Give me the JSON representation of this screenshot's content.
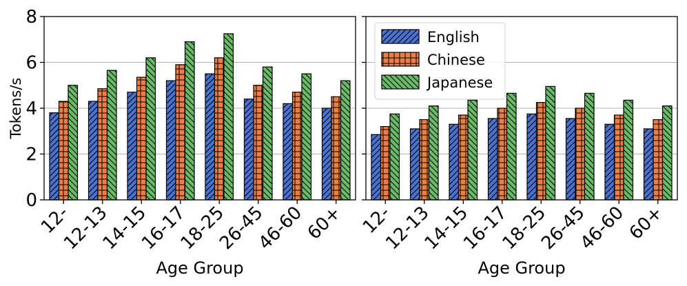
{
  "chart_data": [
    {
      "type": "bar",
      "panel": "left",
      "categories": [
        "12-",
        "12-13",
        "14-15",
        "16-17",
        "18-25",
        "26-45",
        "46-60",
        "60+"
      ],
      "series": [
        {
          "name": "English",
          "values": [
            3.8,
            4.3,
            4.7,
            5.2,
            5.5,
            4.4,
            4.2,
            4.0
          ]
        },
        {
          "name": "Chinese",
          "values": [
            4.3,
            4.85,
            5.35,
            5.9,
            6.2,
            5.0,
            4.7,
            4.5
          ]
        },
        {
          "name": "Japanese",
          "values": [
            5.0,
            5.65,
            6.2,
            6.9,
            7.25,
            5.8,
            5.5,
            5.2
          ]
        }
      ],
      "xlabel": "Age Group",
      "ylabel": "Tokens/s",
      "ylim": [
        0,
        8
      ],
      "yticks": [
        "0",
        "2",
        "4",
        "6",
        "8"
      ],
      "grid": "horizontal",
      "legend": false
    },
    {
      "type": "bar",
      "panel": "right",
      "categories": [
        "12-",
        "12-13",
        "14-15",
        "16-17",
        "18-25",
        "26-45",
        "46-60",
        "60+"
      ],
      "series": [
        {
          "name": "English",
          "values": [
            2.85,
            3.1,
            3.3,
            3.55,
            3.75,
            3.55,
            3.3,
            3.1
          ]
        },
        {
          "name": "Chinese",
          "values": [
            3.2,
            3.5,
            3.7,
            4.0,
            4.25,
            4.0,
            3.7,
            3.5
          ]
        },
        {
          "name": "Japanese",
          "values": [
            3.75,
            4.1,
            4.35,
            4.65,
            4.95,
            4.65,
            4.35,
            4.1
          ]
        }
      ],
      "xlabel": "Age Group",
      "ylabel": "",
      "ylim": [
        0,
        8
      ],
      "shared_y": true,
      "grid": "horizontal",
      "legend": true,
      "legend_position": "top-left"
    }
  ],
  "series_style": [
    {
      "name": "English",
      "color": "#4a72cf",
      "hatch": "diagonal-forward"
    },
    {
      "name": "Chinese",
      "color": "#ec7f49",
      "hatch": "grid"
    },
    {
      "name": "Japanese",
      "color": "#66bd63",
      "hatch": "diagonal-backward"
    }
  ]
}
